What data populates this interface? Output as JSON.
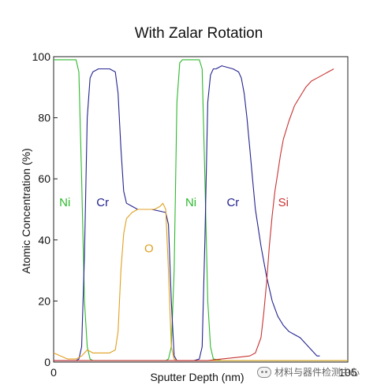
{
  "chart_data": {
    "type": "line",
    "title": "With Zalar Rotation",
    "xlabel": "Sputter Depth (nm)",
    "ylabel": "Atomic Concentration (%)",
    "xlim": [
      0,
      105
    ],
    "ylim": [
      0,
      100
    ],
    "x_ticks": [
      "0",
      "105"
    ],
    "y_ticks": [
      "0",
      "20",
      "40",
      "60",
      "80",
      "100"
    ],
    "grid": false,
    "series": [
      {
        "name": "Ni",
        "color": "#2db82d",
        "x": [
          0,
          1,
          8,
          9,
          10,
          11,
          12,
          13,
          14,
          16,
          40,
          41,
          42,
          43,
          44,
          45,
          46,
          52,
          53,
          54,
          55,
          56,
          57,
          60,
          70,
          80,
          90,
          100,
          105
        ],
        "y": [
          99,
          99,
          99,
          95,
          60,
          20,
          5,
          1,
          0.5,
          0.5,
          0.5,
          1,
          5,
          30,
          85,
          98,
          99,
          99,
          96,
          60,
          20,
          5,
          1,
          0.5,
          0.5,
          0.5,
          0.5,
          0.5,
          0.5
        ]
      },
      {
        "name": "Cr",
        "color": "#23238f",
        "x": [
          0,
          8,
          9,
          10,
          11,
          12,
          13,
          14,
          16,
          20,
          22,
          23,
          24,
          25,
          26,
          28,
          30,
          33,
          35,
          40,
          41,
          42,
          43,
          44,
          45,
          50,
          52,
          53,
          54,
          55,
          56,
          57,
          58,
          60,
          64,
          66,
          67,
          68,
          69,
          70,
          71,
          72,
          74,
          76,
          78,
          80,
          82,
          84,
          86,
          88,
          90,
          92,
          93,
          94,
          95
        ],
        "y": [
          0.5,
          0.5,
          1,
          5,
          35,
          80,
          93,
          95,
          96,
          96,
          95,
          88,
          70,
          56,
          52,
          51,
          50,
          50,
          50,
          49,
          45,
          20,
          2,
          0.5,
          0.5,
          0.5,
          1,
          5,
          40,
          85,
          94,
          96,
          96,
          97,
          96,
          95,
          93,
          88,
          80,
          70,
          60,
          50,
          38,
          28,
          20,
          15,
          12,
          10,
          9,
          8,
          6,
          4,
          3,
          2,
          2
        ]
      },
      {
        "name": "O",
        "color": "#e0a020",
        "x": [
          0,
          5,
          8,
          10,
          11,
          12,
          13,
          14,
          16,
          18,
          20,
          22,
          23,
          24,
          25,
          26,
          28,
          30,
          33,
          36,
          38,
          39,
          40,
          41,
          42,
          43,
          44,
          50,
          55,
          60,
          70,
          80,
          90,
          100,
          105
        ],
        "y": [
          3,
          1,
          1,
          2,
          3,
          4,
          3.5,
          3,
          3,
          3,
          3,
          4,
          10,
          30,
          42,
          47,
          49,
          50,
          50,
          50,
          51,
          52,
          50,
          30,
          5,
          1,
          0.5,
          0.5,
          0.5,
          0.5,
          0.5,
          0.5,
          0.5,
          0.5,
          0.5
        ]
      },
      {
        "name": "Si",
        "color": "#c83232",
        "x": [
          0,
          40,
          55,
          60,
          65,
          70,
          72,
          74,
          75,
          76,
          77,
          78,
          79,
          80,
          81,
          82,
          84,
          86,
          88,
          90,
          92,
          94,
          96,
          98,
          100
        ],
        "y": [
          0.5,
          0.5,
          0.5,
          1,
          1.5,
          2,
          3,
          8,
          16,
          26,
          38,
          48,
          56,
          62,
          68,
          73,
          79,
          84,
          87,
          90,
          92,
          93,
          94,
          95,
          96
        ]
      }
    ],
    "annotations": [
      {
        "text": "Ni",
        "x": 4,
        "y": 51,
        "color": "#2db82d"
      },
      {
        "text": "Cr",
        "x": 17.5,
        "y": 51,
        "color": "#23238f"
      },
      {
        "text": "O",
        "x": 34,
        "y": 36,
        "color": "#e0a020"
      },
      {
        "text": "Ni",
        "x": 49,
        "y": 51,
        "color": "#2db82d"
      },
      {
        "text": "Cr",
        "x": 64,
        "y": 51,
        "color": "#23238f"
      },
      {
        "text": "Si",
        "x": 82,
        "y": 51,
        "color": "#c83232"
      }
    ]
  },
  "watermark": {
    "text": "材料与器件检测中心",
    "icon": "wechat-icon"
  }
}
